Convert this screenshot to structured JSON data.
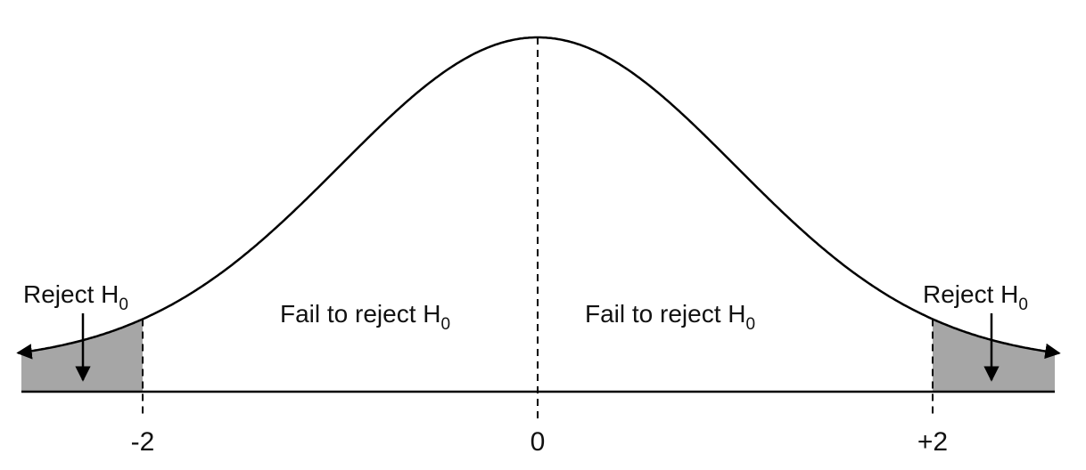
{
  "diagram": {
    "type": "normal-distribution-two-tailed-test",
    "colors": {
      "curve": "#000000",
      "rejection_fill": "#a6a6a6",
      "background": "#ffffff"
    },
    "regions": [
      {
        "side": "left",
        "text": "Reject H",
        "subscript": "0"
      },
      {
        "side": "center-left",
        "text": "Fail to reject H",
        "subscript": "0"
      },
      {
        "side": "center-right",
        "text": "Fail to reject H",
        "subscript": "0"
      },
      {
        "side": "right",
        "text": "Reject H",
        "subscript": "0"
      }
    ],
    "critical_values": [
      -2,
      2
    ],
    "axis_ticks": [
      "-2",
      "0",
      "+2"
    ]
  }
}
